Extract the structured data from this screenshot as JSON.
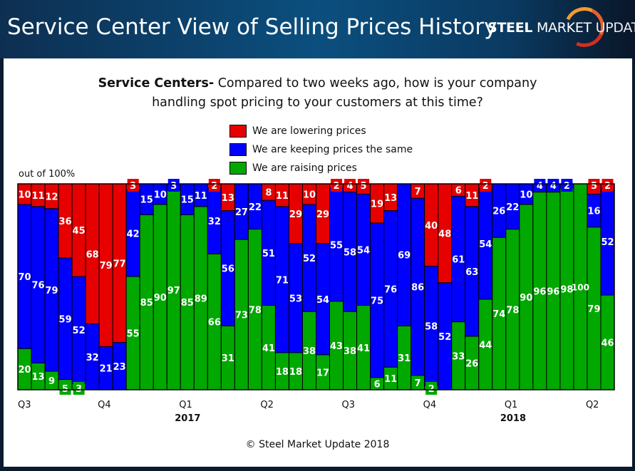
{
  "header": {
    "title": "Service Center View of Selling Prices History",
    "logo": {
      "word1": "STEEL",
      "word2": "MARKET",
      "word3": "UPDATE"
    }
  },
  "question": {
    "bold": "Service Centers-",
    "line1": " Compared to two weeks ago, how is your company",
    "line2": "handling spot pricing to your customers at this time?"
  },
  "footer": {
    "copyright": "© Steel Market Update 2018"
  },
  "chart_data": {
    "type": "bar",
    "stacked": "100%",
    "ylabel": "out of 100%",
    "ylim": [
      0,
      100
    ],
    "legend_position": "top",
    "series": [
      {
        "name": "We are lowering prices",
        "color": "#e60000",
        "values": [
          10,
          11,
          12,
          36,
          45,
          68,
          79,
          77,
          3,
          0,
          0,
          0,
          0,
          0,
          2,
          13,
          0,
          0,
          8,
          11,
          29,
          10,
          29,
          2,
          4,
          5,
          19,
          13,
          0,
          7,
          40,
          48,
          6,
          11,
          2,
          0,
          0,
          0,
          0,
          0,
          0,
          0,
          5,
          2
        ]
      },
      {
        "name": "We are keeping prices the same",
        "color": "#0000ff",
        "values": [
          70,
          76,
          79,
          59,
          52,
          32,
          21,
          23,
          42,
          15,
          10,
          3,
          15,
          11,
          32,
          56,
          27,
          22,
          51,
          71,
          53,
          52,
          54,
          55,
          58,
          54,
          75,
          76,
          69,
          86,
          58,
          52,
          61,
          63,
          54,
          26,
          22,
          10,
          4,
          4,
          2,
          0,
          16,
          52
        ]
      },
      {
        "name": "We are raising prices",
        "color": "#00a800",
        "values": [
          20,
          13,
          9,
          5,
          3,
          0,
          0,
          0,
          55,
          85,
          90,
          97,
          85,
          89,
          66,
          31,
          73,
          78,
          41,
          18,
          18,
          38,
          17,
          43,
          38,
          41,
          6,
          11,
          31,
          7,
          2,
          0,
          33,
          26,
          44,
          74,
          78,
          90,
          96,
          96,
          98,
          100,
          79,
          46
        ]
      }
    ],
    "x_tick_labels": [
      {
        "label": "Q3",
        "bar": 0
      },
      {
        "label": "Q4",
        "bar": 6
      },
      {
        "label": "Q1",
        "bar": 12
      },
      {
        "label": "Q2",
        "bar": 18
      },
      {
        "label": "Q3",
        "bar": 24
      },
      {
        "label": "Q4",
        "bar": 30
      },
      {
        "label": "Q1",
        "bar": 36
      },
      {
        "label": "Q2",
        "bar": 42
      }
    ],
    "year_labels": [
      {
        "label": "2017",
        "bar": 12
      },
      {
        "label": "2018",
        "bar": 36
      }
    ]
  }
}
